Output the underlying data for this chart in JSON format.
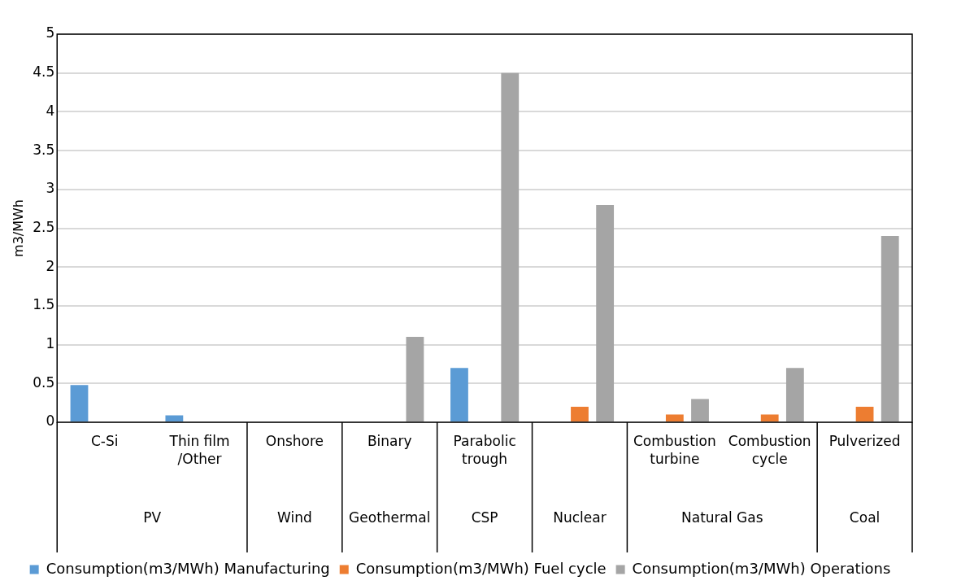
{
  "chart_data": {
    "type": "bar",
    "categories": [
      "C-Si",
      "Thin film /Other",
      "Onshore",
      "Binary",
      "Parabolic trough",
      null,
      "Combustion turbine",
      "Combustion cycle",
      "Pulverized"
    ],
    "series": [
      {
        "name": "Consumption(m3/MWh) Manufacturing",
        "color": "#5b9bd5",
        "values": [
          0.48,
          0.09,
          null,
          null,
          0.7,
          null,
          null,
          null,
          null
        ]
      },
      {
        "name": "Consumption(m3/MWh) Fuel cycle",
        "color": "#ed7d31",
        "values": [
          null,
          null,
          null,
          null,
          null,
          0.2,
          0.1,
          0.1,
          0.2
        ]
      },
      {
        "name": "Consumption(m3/MWh) Operations",
        "color": "#a5a5a5",
        "values": [
          null,
          null,
          null,
          1.1,
          4.5,
          2.8,
          0.3,
          0.7,
          2.4
        ]
      }
    ],
    "ylabel": "m3/MWh",
    "ylim": [
      0,
      5
    ],
    "yticks": [
      0,
      0.5,
      1,
      1.5,
      2,
      2.5,
      3,
      3.5,
      4,
      4.5,
      5
    ],
    "annotations": [
      "PV",
      "Wind",
      "Geothermal",
      "CSP",
      "Nuclear",
      "Natural Gas",
      "Coal"
    ],
    "grid": "y",
    "legend": "bottom"
  }
}
